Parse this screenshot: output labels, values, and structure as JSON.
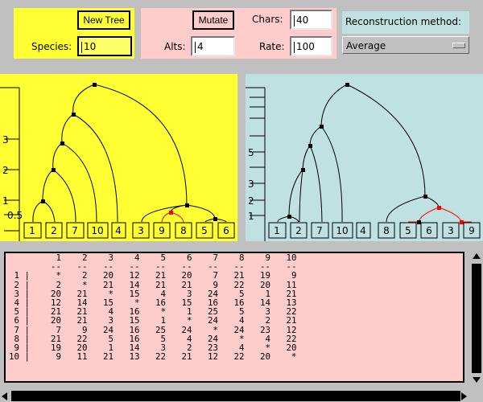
{
  "controls": {
    "new_tree_label": "New Tree",
    "species_label": "Species:",
    "species_value": "10",
    "mutate_label": "Mutate",
    "chars_label": "Chars:",
    "chars_value": "40",
    "alts_label": "Alts:",
    "alts_value": "4",
    "rate_label": "Rate:",
    "rate_value": "100",
    "reconstruction_label": "Reconstruction method:",
    "reconstruction_selected": "Average"
  },
  "left_tree": {
    "axis_ticks": [
      "3",
      "2",
      "1",
      "0.5"
    ],
    "leaves": [
      "1",
      "2",
      "7",
      "10",
      "4",
      "3",
      "9",
      "8",
      "5",
      "6"
    ],
    "colors": {
      "background": "#ffff33",
      "branch": "#000000",
      "highlight": "#ff0000"
    }
  },
  "right_tree": {
    "axis_ticks": [
      "5",
      "3",
      "2",
      "1"
    ],
    "leaves": [
      "1",
      "2",
      "7",
      "10",
      "4",
      "8",
      "5",
      "6",
      "3",
      "9"
    ],
    "colors": {
      "background": "#bfe1e1",
      "branch": "#000000",
      "highlight": "#ff0000"
    }
  },
  "distance_matrix": {
    "header": [
      "1",
      "2",
      "3",
      "4",
      "5",
      "6",
      "7",
      "8",
      "9",
      "10"
    ],
    "rows": [
      {
        "label": "1",
        "values": [
          "*",
          "2",
          "20",
          "12",
          "21",
          "20",
          "7",
          "21",
          "19",
          "9"
        ]
      },
      {
        "label": "2",
        "values": [
          "2",
          "*",
          "21",
          "14",
          "21",
          "21",
          "9",
          "22",
          "20",
          "11"
        ]
      },
      {
        "label": "3",
        "values": [
          "20",
          "21",
          "*",
          "15",
          "4",
          "3",
          "24",
          "5",
          "1",
          "21"
        ]
      },
      {
        "label": "4",
        "values": [
          "12",
          "14",
          "15",
          "*",
          "16",
          "15",
          "16",
          "16",
          "14",
          "13"
        ]
      },
      {
        "label": "5",
        "values": [
          "21",
          "21",
          "4",
          "16",
          "*",
          "1",
          "25",
          "5",
          "3",
          "22"
        ]
      },
      {
        "label": "6",
        "values": [
          "20",
          "21",
          "3",
          "15",
          "1",
          "*",
          "24",
          "4",
          "2",
          "21"
        ]
      },
      {
        "label": "7",
        "values": [
          "7",
          "9",
          "24",
          "16",
          "25",
          "24",
          "*",
          "24",
          "23",
          "12"
        ]
      },
      {
        "label": "8",
        "values": [
          "21",
          "22",
          "5",
          "16",
          "5",
          "4",
          "24",
          "*",
          "4",
          "22"
        ]
      },
      {
        "label": "9",
        "values": [
          "19",
          "20",
          "1",
          "14",
          "3",
          "2",
          "23",
          "4",
          "*",
          "20"
        ]
      },
      {
        "label": "10",
        "values": [
          "9",
          "11",
          "21",
          "13",
          "22",
          "21",
          "12",
          "22",
          "20",
          "*"
        ]
      }
    ]
  }
}
